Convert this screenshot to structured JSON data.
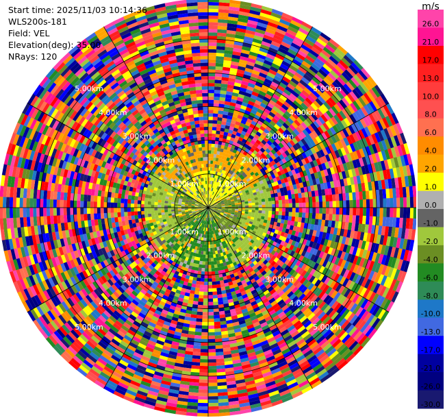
{
  "header": {
    "start_time": "Start time: 2025/11/03 10:14:36",
    "instrument": "WLS200s-181",
    "field": "Field: VEL",
    "elevation": "Elevation(deg): 35.00",
    "nrays": "NRays: 120"
  },
  "chart_data": {
    "type": "heatmap",
    "projection": "polar-ppi",
    "field": "VEL",
    "units": "m/s",
    "n_rays": 120,
    "max_range_km": 6.2,
    "range_rings_km": [
      1,
      2,
      3,
      4,
      5
    ],
    "range_labels": [
      "1.00km",
      "2.00km",
      "3.00km",
      "4.00km",
      "5.00km"
    ],
    "spoke_angles_deg": [
      0,
      30,
      60,
      90,
      120,
      150,
      180,
      210,
      240,
      270,
      300,
      330
    ],
    "near_field_description_km": {
      "valid_data_max_range": 2.0
    },
    "colorbar": {
      "label": "m/s",
      "ticks": [
        "26.0",
        "21.0",
        "17.0",
        "13.0",
        "10.0",
        "8.0",
        "6.0",
        "4.0",
        "2.0",
        "1.0",
        "0.0",
        "-1.0",
        "-2.0",
        "-4.0",
        "-6.0",
        "-8.0",
        "-10.0",
        "-13.0",
        "-17.0",
        "-21.0",
        "-26.0",
        "-30.0"
      ],
      "colors": [
        "#ff44aa",
        "#ff1493",
        "#ff0000",
        "#ff2020",
        "#ff3c3c",
        "#ff5050",
        "#ff7050",
        "#ff8c00",
        "#ffa500",
        "#ffff00",
        "#b0b0b0",
        "#646464",
        "#a0c83c",
        "#6b8e23",
        "#228b22",
        "#2e8b57",
        "#1e78c8",
        "#4169e1",
        "#0000ff",
        "#0000a0",
        "#000080",
        "#191970"
      ]
    }
  }
}
